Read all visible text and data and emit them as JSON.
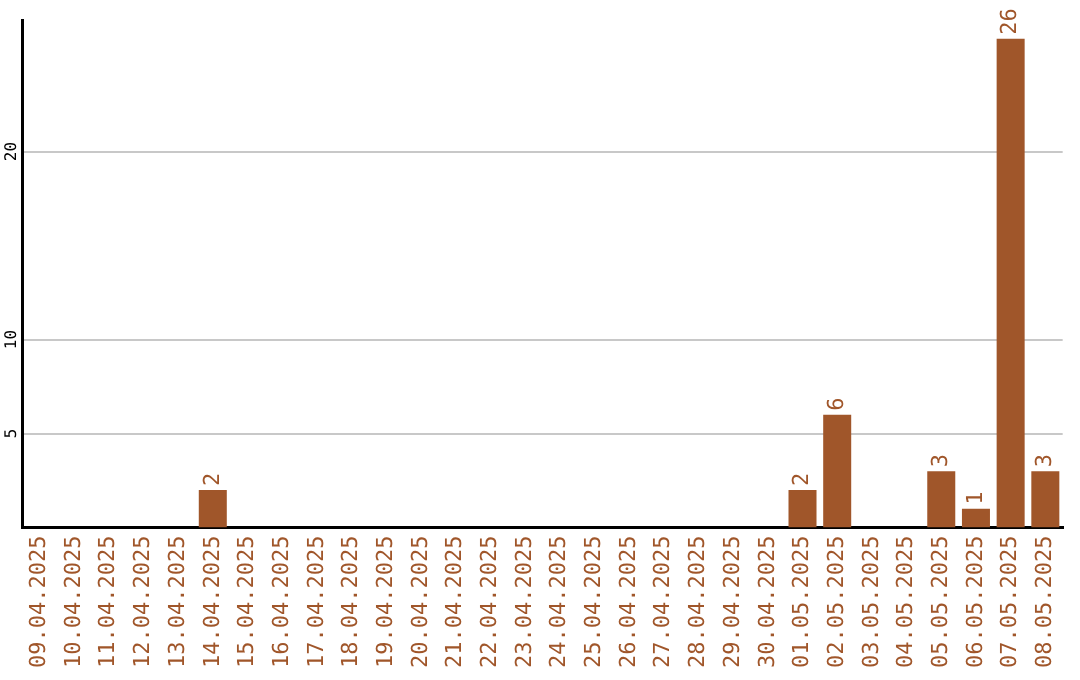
{
  "chart_data": {
    "type": "bar",
    "categories": [
      "09.04.2025",
      "10.04.2025",
      "11.04.2025",
      "12.04.2025",
      "13.04.2025",
      "14.04.2025",
      "15.04.2025",
      "16.04.2025",
      "17.04.2025",
      "18.04.2025",
      "19.04.2025",
      "20.04.2025",
      "21.04.2025",
      "22.04.2025",
      "23.04.2025",
      "24.04.2025",
      "25.04.2025",
      "26.04.2025",
      "27.04.2025",
      "28.04.2025",
      "29.04.2025",
      "30.04.2025",
      "01.05.2025",
      "02.05.2025",
      "03.05.2025",
      "04.05.2025",
      "05.05.2025",
      "06.05.2025",
      "07.05.2025",
      "08.05.2025"
    ],
    "values": [
      0,
      0,
      0,
      0,
      0,
      2,
      0,
      0,
      0,
      0,
      0,
      0,
      0,
      0,
      0,
      0,
      0,
      0,
      0,
      0,
      0,
      0,
      2,
      6,
      0,
      0,
      3,
      1,
      26,
      3
    ],
    "value_labels": [
      null,
      null,
      null,
      null,
      null,
      "2",
      null,
      null,
      null,
      null,
      null,
      null,
      null,
      null,
      null,
      null,
      null,
      null,
      null,
      null,
      null,
      null,
      "2",
      "6",
      null,
      null,
      "3",
      "1",
      "26",
      "3"
    ],
    "color": "#a0562a",
    "ylim": [
      0,
      27
    ],
    "yticks": [
      5,
      10,
      20
    ],
    "grid": "y"
  }
}
